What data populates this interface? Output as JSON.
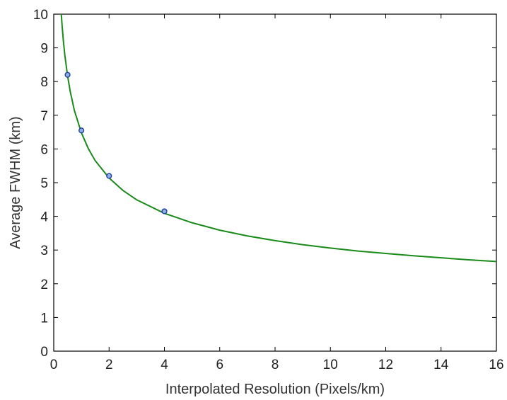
{
  "chart_data": {
    "type": "scatter",
    "title": "",
    "xlabel": "Interpolated Resolution (Pixels/km)",
    "ylabel": "Average FWHM (km)",
    "xlim": [
      0,
      16
    ],
    "ylim": [
      0,
      10
    ],
    "xticks": [
      0,
      2,
      4,
      6,
      8,
      10,
      12,
      14,
      16
    ],
    "yticks": [
      0,
      1,
      2,
      3,
      4,
      5,
      6,
      7,
      8,
      9,
      10
    ],
    "grid": false,
    "series": [
      {
        "kind": "markers",
        "x": [
          0.5,
          1,
          2,
          4
        ],
        "y": [
          8.2,
          6.55,
          5.2,
          4.15
        ],
        "color": "#1f3f9f",
        "face_color": "#8fb0e0"
      },
      {
        "kind": "fit-line",
        "x": [
          0.25,
          0.3,
          0.35,
          0.4,
          0.5,
          0.6,
          0.75,
          1,
          1.25,
          1.5,
          2,
          2.5,
          3,
          4,
          5,
          6,
          7,
          8,
          9,
          10,
          11,
          12,
          13,
          14,
          15,
          16
        ],
        "y": [
          10.29,
          9.68,
          9.19,
          8.79,
          8.17,
          7.69,
          7.13,
          6.48,
          6.01,
          5.65,
          5.14,
          4.77,
          4.49,
          4.09,
          3.81,
          3.59,
          3.42,
          3.28,
          3.16,
          3.06,
          2.97,
          2.9,
          2.83,
          2.77,
          2.71,
          2.66
        ],
        "color": "#1a8a1a"
      }
    ]
  }
}
